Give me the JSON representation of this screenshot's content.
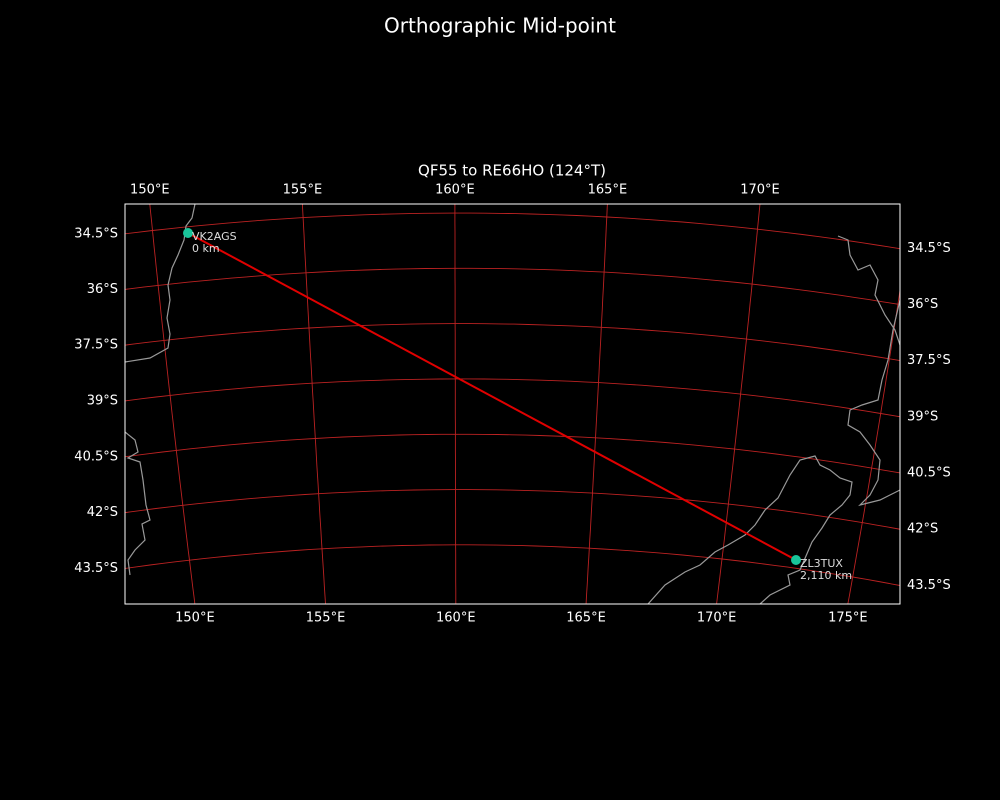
{
  "title": "Orthographic Mid-point",
  "map": {
    "title": "QF55 to RE66HO (124°T)",
    "lon_ticks_top": [
      {
        "value": 150,
        "label": "150°E"
      },
      {
        "value": 155,
        "label": "155°E"
      },
      {
        "value": 160,
        "label": "160°E"
      },
      {
        "value": 165,
        "label": "165°E"
      },
      {
        "value": 170,
        "label": "170°E"
      }
    ],
    "lon_ticks_bottom": [
      {
        "value": 150,
        "label": "150°E"
      },
      {
        "value": 155,
        "label": "155°E"
      },
      {
        "value": 160,
        "label": "160°E"
      },
      {
        "value": 165,
        "label": "165°E"
      },
      {
        "value": 170,
        "label": "170°E"
      },
      {
        "value": 175,
        "label": "175°E"
      }
    ],
    "lat_ticks_left": [
      {
        "value": -34.5,
        "label": "34.5°S"
      },
      {
        "value": -36,
        "label": "36°S"
      },
      {
        "value": -37.5,
        "label": "37.5°S"
      },
      {
        "value": -39,
        "label": "39°S"
      },
      {
        "value": -40.5,
        "label": "40.5°S"
      },
      {
        "value": -42,
        "label": "42°S"
      },
      {
        "value": -43.5,
        "label": "43.5°S"
      }
    ],
    "lat_ticks_right": [
      {
        "value": -34.5,
        "label": "34.5°S"
      },
      {
        "value": -36,
        "label": "36°S"
      },
      {
        "value": -37.5,
        "label": "37.5°S"
      },
      {
        "value": -39,
        "label": "39°S"
      },
      {
        "value": -40.5,
        "label": "40.5°S"
      },
      {
        "value": -42,
        "label": "42°S"
      },
      {
        "value": -43.5,
        "label": "43.5°S"
      }
    ],
    "stations": [
      {
        "name": "VK2AGS",
        "distance": "0 km"
      },
      {
        "name": "ZL3TUX",
        "distance": "2,110 km"
      }
    ]
  }
}
